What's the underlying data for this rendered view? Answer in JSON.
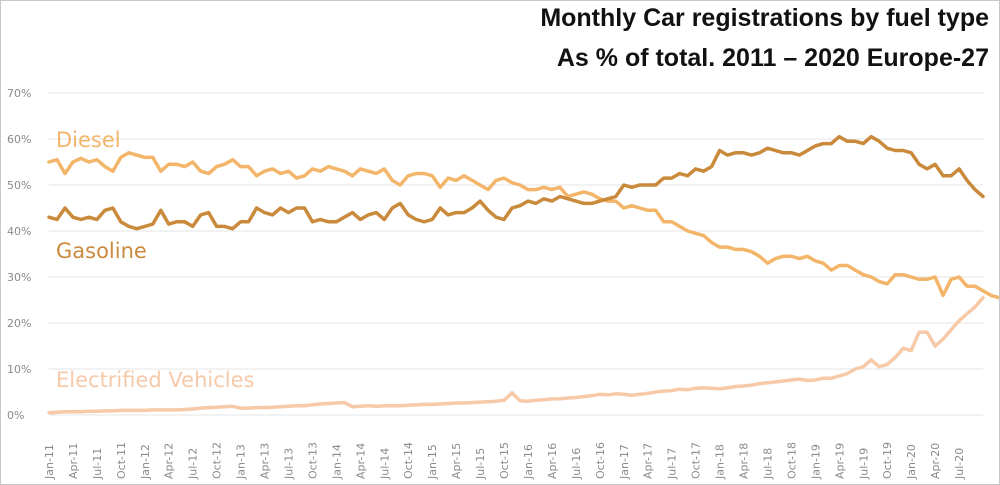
{
  "chart_data": {
    "type": "line",
    "title": "Monthly Car registrations by fuel type",
    "subtitle": "As % of total. 2011 – 2020 Europe-27",
    "xlabel": "",
    "ylabel": "",
    "ylim": [
      0,
      70
    ],
    "y_ticks": [
      "0%",
      "10%",
      "20%",
      "30%",
      "40%",
      "50%",
      "60%",
      "70%"
    ],
    "grid": true,
    "legend": "inline labels",
    "x_tick_labels": [
      "Jan-11",
      "Apr-11",
      "Jul-11",
      "Oct-11",
      "Jan-12",
      "Apr-12",
      "Jul-12",
      "Oct-12",
      "Jan-13",
      "Apr-13",
      "Jul-13",
      "Oct-13",
      "Jan-14",
      "Apr-14",
      "Jul-14",
      "Oct-14",
      "Jan-15",
      "Apr-15",
      "Jul-15",
      "Oct-15",
      "Jan-16",
      "Apr-16",
      "Jul-16",
      "Oct-16",
      "Jan-17",
      "Apr-17",
      "Jul-17",
      "Oct-17",
      "Jan-18",
      "Apr-18",
      "Jul-18",
      "Oct-18",
      "Jan-19",
      "Apr-19",
      "Jul-19",
      "Oct-19",
      "Jan-20",
      "Apr-20",
      "Jul-20"
    ],
    "months_count": 118,
    "series": [
      {
        "name": "Diesel",
        "color": "#F3B56A",
        "values": [
          55,
          55.5,
          52.5,
          55,
          55.8,
          55,
          55.5,
          54,
          53,
          56,
          57,
          56.5,
          56,
          56,
          53,
          54.5,
          54.5,
          54,
          55,
          53,
          52.5,
          54,
          54.5,
          55.5,
          54,
          54,
          52,
          53,
          53.5,
          52.5,
          53,
          51.5,
          52,
          53.5,
          53,
          54,
          53.5,
          53,
          52,
          53.5,
          53,
          52.5,
          53.5,
          51,
          50,
          52,
          52.5,
          52.5,
          52,
          49.5,
          51.5,
          51,
          52,
          51,
          50,
          49,
          51,
          51.5,
          50.5,
          50,
          49,
          49,
          49.5,
          49,
          49.5,
          47.5,
          48,
          48.5,
          48,
          47,
          46.5,
          46.5,
          45,
          45.5,
          45,
          44.5,
          44.5,
          42,
          42,
          41,
          40,
          39.5,
          39,
          37.5,
          36.5,
          36.5,
          36,
          36,
          35.5,
          34.5,
          33,
          34,
          34.5,
          34.5,
          34,
          34.5,
          33.5,
          33,
          31.5,
          32.5,
          32.5,
          31.5,
          30.5,
          30,
          29,
          28.5,
          30.5,
          30.5,
          30,
          29.5,
          29.5,
          30,
          26,
          29.5,
          30,
          28,
          28,
          27,
          26,
          25.5
        ]
      },
      {
        "name": "Gasoline",
        "color": "#C98A3C",
        "values": [
          43,
          42.5,
          45,
          43,
          42.5,
          43,
          42.5,
          44.5,
          45,
          42,
          41,
          40.5,
          41,
          41.5,
          44.5,
          41.5,
          42,
          42,
          41,
          43.5,
          44,
          41,
          41,
          40.5,
          42,
          42,
          45,
          44,
          43.5,
          45,
          44,
          45,
          45,
          42,
          42.5,
          42,
          42,
          43,
          44,
          42.5,
          43.5,
          44,
          42.5,
          45,
          46,
          43.5,
          42.5,
          42,
          42.5,
          45,
          43.5,
          44,
          44,
          45,
          46.5,
          44.5,
          43,
          42.5,
          45,
          45.5,
          46.5,
          46,
          47,
          46.5,
          47.5,
          47,
          46.5,
          46,
          46,
          46.5,
          47,
          47.5,
          50,
          49.5,
          50,
          50,
          50,
          51.5,
          51.5,
          52.5,
          52,
          53.5,
          53,
          54,
          57.5,
          56.5,
          57,
          57,
          56.5,
          57,
          58,
          57.5,
          57,
          57,
          56.5,
          57.5,
          58.5,
          59,
          59,
          60.5,
          59.5,
          59.5,
          59,
          60.5,
          59.5,
          58,
          57.5,
          57.5,
          57,
          54.5,
          53.5,
          54.5,
          52,
          52,
          53.5,
          51,
          49,
          47.5
        ]
      },
      {
        "name": "Electrified Vehicles",
        "color": "#F6C9A8",
        "values": [
          0.5,
          0.6,
          0.7,
          0.7,
          0.7,
          0.8,
          0.8,
          0.9,
          0.9,
          1,
          1,
          1,
          1,
          1.1,
          1.1,
          1.1,
          1.1,
          1.2,
          1.3,
          1.5,
          1.6,
          1.7,
          1.8,
          1.9,
          1.5,
          1.5,
          1.6,
          1.6,
          1.7,
          1.8,
          1.9,
          2,
          2,
          2.2,
          2.4,
          2.5,
          2.6,
          2.7,
          1.8,
          1.9,
          2,
          1.9,
          2,
          2,
          2,
          2.1,
          2.2,
          2.3,
          2.3,
          2.4,
          2.5,
          2.6,
          2.6,
          2.7,
          2.8,
          2.9,
          3,
          3.2,
          4.8,
          3.1,
          3,
          3.2,
          3.3,
          3.5,
          3.5,
          3.7,
          3.8,
          4,
          4.2,
          4.5,
          4.4,
          4.6,
          4.5,
          4.3,
          4.5,
          4.7,
          5,
          5.2,
          5.3,
          5.6,
          5.5,
          5.8,
          5.9,
          5.8,
          5.7,
          5.9,
          6.2,
          6.3,
          6.5,
          6.8,
          7,
          7.2,
          7.4,
          7.6,
          7.8,
          7.5,
          7.6,
          8,
          8,
          8.5,
          9,
          10,
          10.5,
          12,
          10.5,
          11,
          12.5,
          14.5,
          14,
          18,
          18,
          15,
          16.5,
          18.5,
          20.5,
          22,
          23.5,
          25.5
        ]
      }
    ]
  }
}
